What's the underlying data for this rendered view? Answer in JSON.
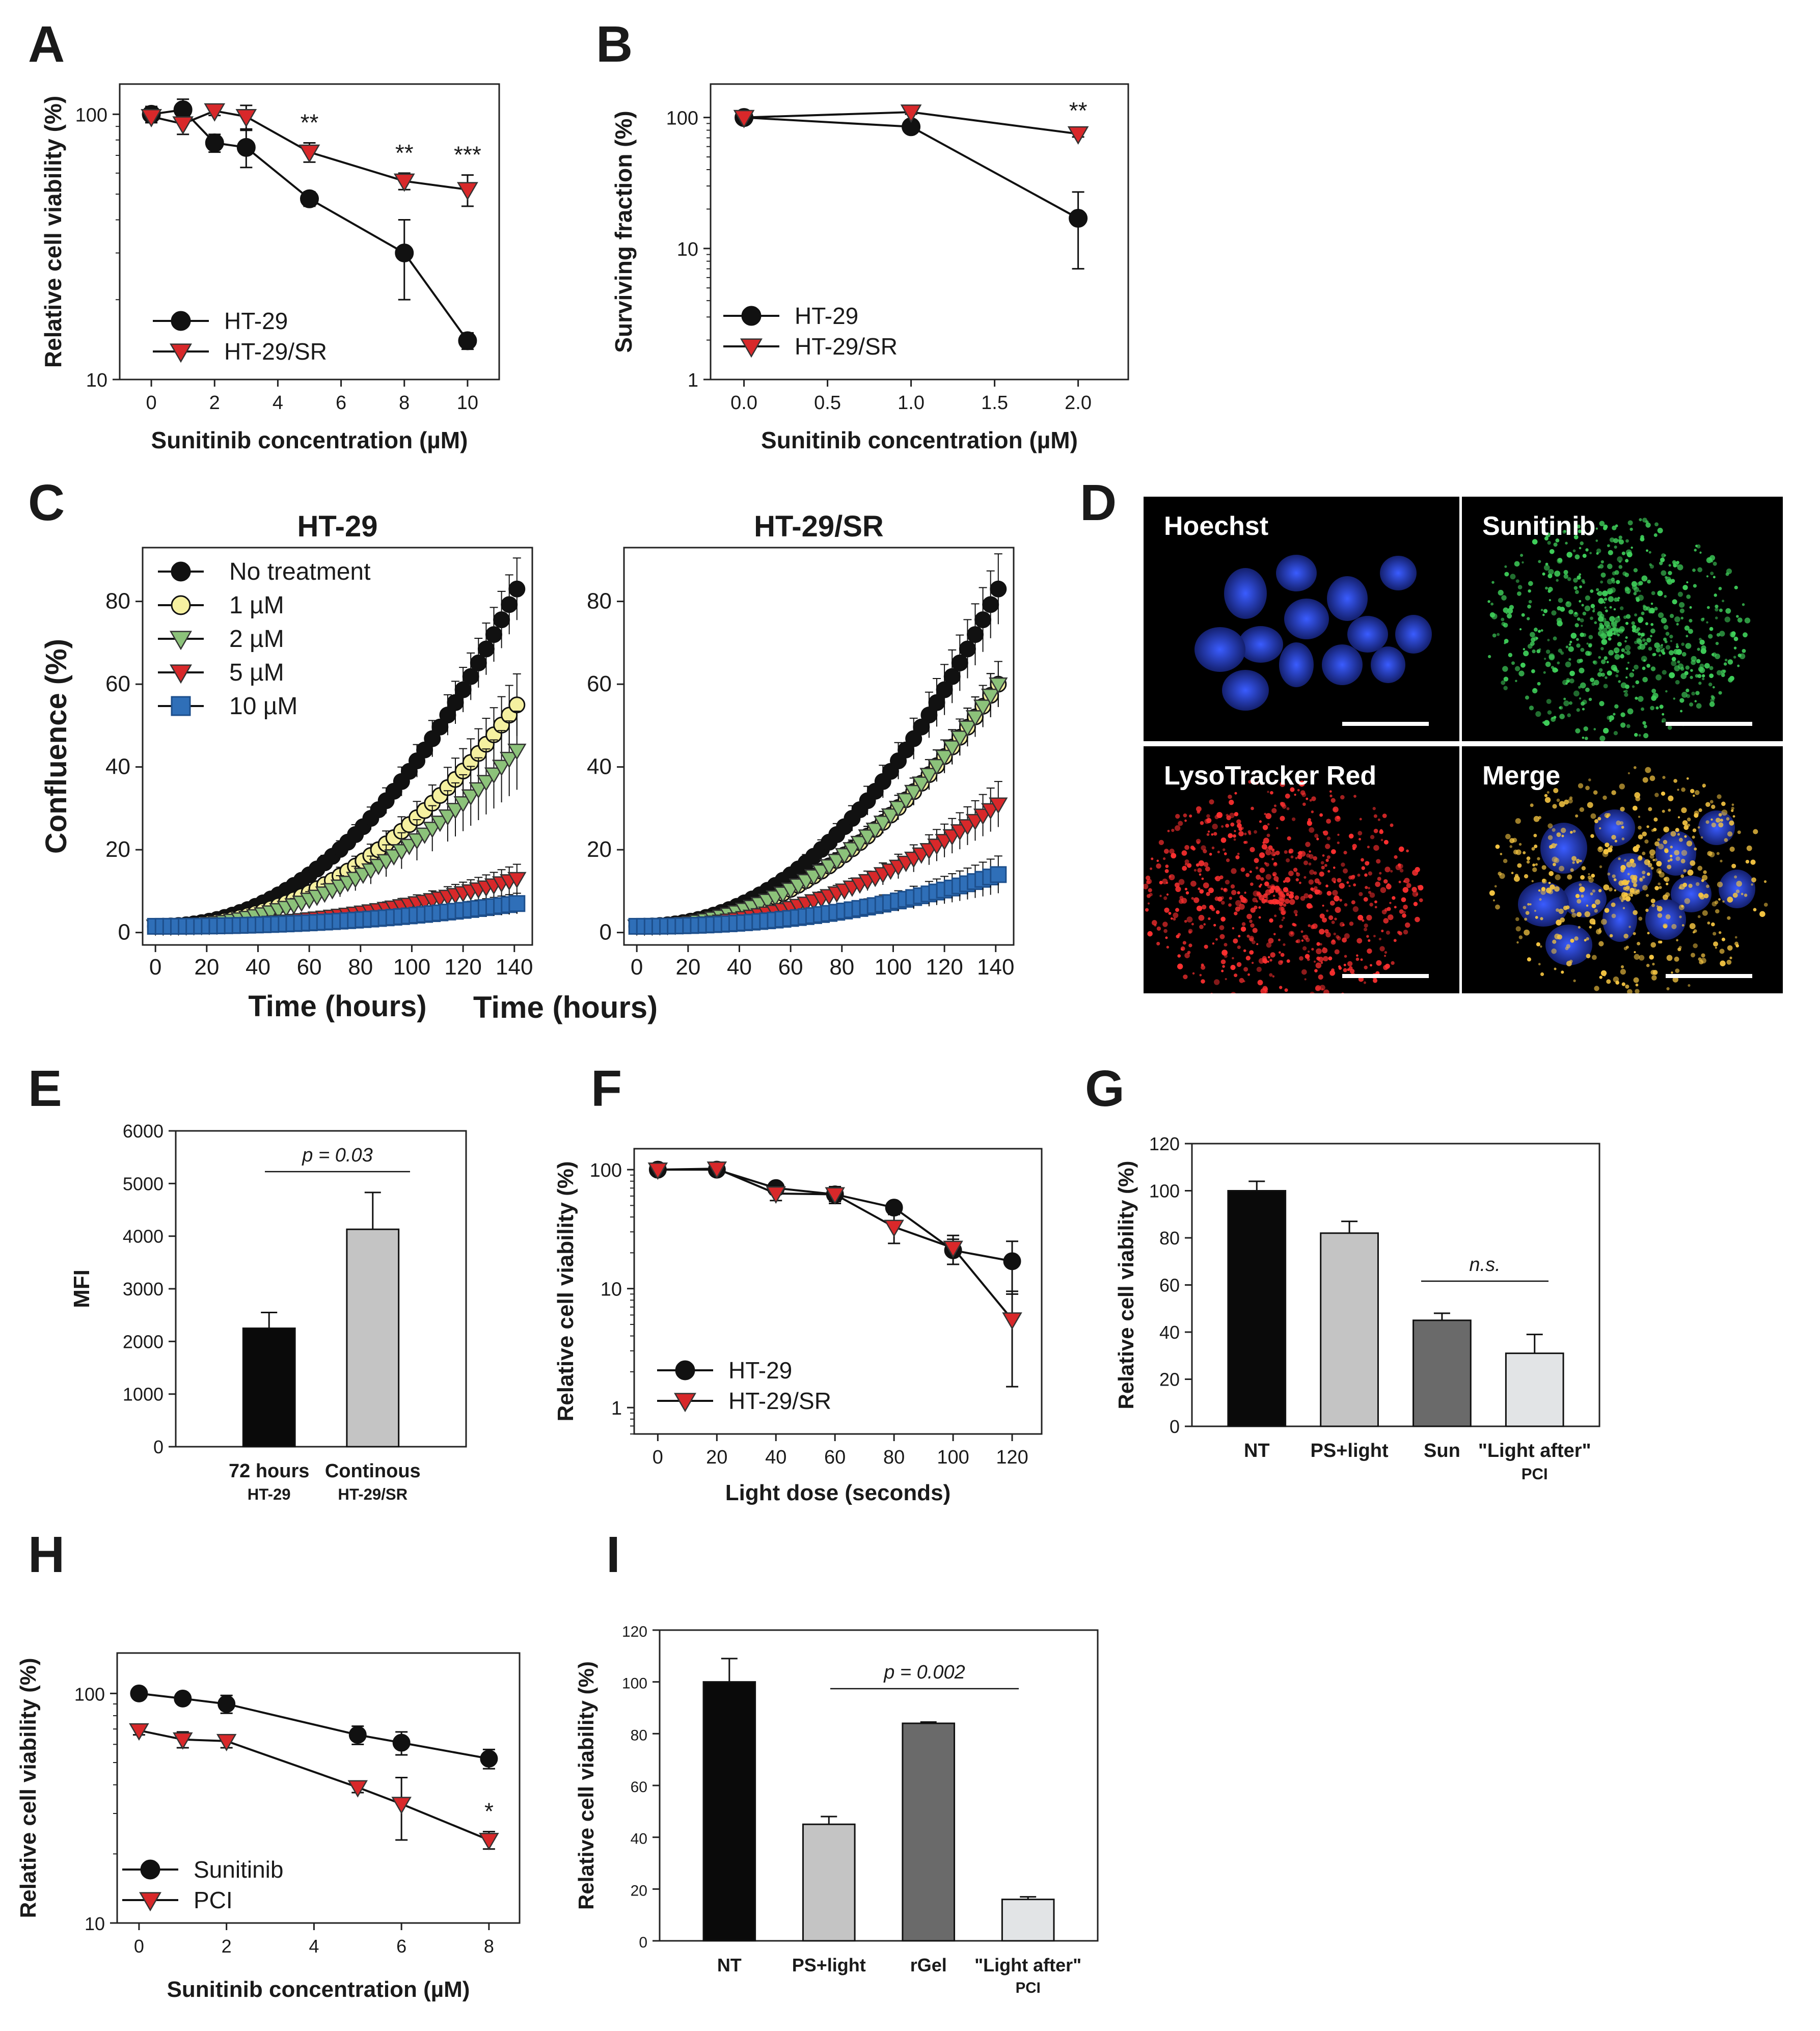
{
  "panels": {
    "A": "A",
    "B": "B",
    "C": "C",
    "D": "D",
    "E": "E",
    "F": "F",
    "G": "G",
    "H": "H",
    "I": "I"
  },
  "micrographs": {
    "hoechst": "Hoechst",
    "sunitinib": "Sunitinib",
    "lysotracker": "LysoTracker Red",
    "merge": "Merge"
  },
  "colors": {
    "black_series": "#111111",
    "red_series": "#d8282a",
    "yellow": "#f5f0a0",
    "green": "#8cc27a",
    "blue": "#2f6fb8",
    "bar_black": "#0a0a0a",
    "bar_light": "#c4c4c4",
    "bar_dark": "#6a6a6a",
    "bar_pale": "#e2e4e6"
  },
  "chart_data": [
    {
      "id": "A",
      "type": "line",
      "yscale": "log",
      "xlabel": "Sunitinib concentration (µM)",
      "ylabel": "Relative cell viability (%)",
      "xlim": [
        -1,
        11
      ],
      "ylim": [
        10,
        130
      ],
      "xticks": [
        "0",
        "2",
        "4",
        "6",
        "8",
        "10"
      ],
      "yticks": [
        "10",
        "100"
      ],
      "series": [
        {
          "name": "HT-29",
          "marker": "circle",
          "x": [
            0,
            1,
            2,
            3,
            5,
            8,
            10
          ],
          "y": [
            100,
            104,
            78,
            75,
            48,
            30,
            14
          ],
          "err": [
            7,
            10,
            6,
            12,
            3,
            10,
            1
          ]
        },
        {
          "name": "HT-29/SR",
          "marker": "triangle",
          "x": [
            0,
            1,
            2,
            3,
            5,
            8,
            10
          ],
          "y": [
            98,
            92,
            103,
            98,
            72,
            56,
            52
          ],
          "err": [
            5,
            8,
            4,
            10,
            6,
            4,
            7
          ]
        }
      ],
      "annotations": [
        {
          "x": 5,
          "text": "**"
        },
        {
          "x": 8,
          "text": "**"
        },
        {
          "x": 10,
          "text": "***"
        }
      ],
      "legend": [
        "HT-29",
        "HT-29/SR"
      ]
    },
    {
      "id": "B",
      "type": "line",
      "yscale": "log",
      "xlabel": "Sunitinib concentration (µM)",
      "ylabel": "Surviving fraction (%)",
      "xlim": [
        -0.2,
        2.3
      ],
      "ylim": [
        1,
        180
      ],
      "xticks": [
        "0.0",
        "0.5",
        "1.0",
        "1.5",
        "2.0"
      ],
      "yticks": [
        "1",
        "10",
        "100"
      ],
      "series": [
        {
          "name": "HT-29",
          "marker": "circle",
          "x": [
            0,
            1,
            2
          ],
          "y": [
            100,
            85,
            17
          ],
          "err": [
            5,
            5,
            10
          ]
        },
        {
          "name": "HT-29/SR",
          "marker": "triangle",
          "x": [
            0,
            1,
            2
          ],
          "y": [
            100,
            110,
            75
          ],
          "err": [
            4,
            4,
            4
          ]
        }
      ],
      "annotations": [
        {
          "x": 2,
          "text": "**"
        }
      ],
      "legend": [
        "HT-29",
        "HT-29/SR"
      ]
    },
    {
      "id": "C1",
      "type": "line",
      "title": "HT-29",
      "xlabel": "Time (hours)",
      "ylabel": "Confluence (%)",
      "xlim": [
        -5,
        147
      ],
      "ylim": [
        -3,
        93
      ],
      "xticks": [
        "0",
        "20",
        "40",
        "60",
        "80",
        "100",
        "120",
        "140"
      ],
      "yticks": [
        "0",
        "20",
        "40",
        "60",
        "80"
      ],
      "series": [
        {
          "name": "No treatment",
          "marker": "circle",
          "end": 83,
          "err": 7
        },
        {
          "name": "1 µM",
          "marker": "circle",
          "end": 55,
          "err": 7
        },
        {
          "name": "2 µM",
          "marker": "triangle",
          "end": 44,
          "err": 9
        },
        {
          "name": "5 µM",
          "marker": "triangle",
          "end": 13,
          "err": 3
        },
        {
          "name": "10 µM",
          "marker": "square",
          "end": 7,
          "err": 2
        }
      ],
      "legend": [
        "No treatment",
        "1 µM",
        "2 µM",
        "5 µM",
        "10 µM"
      ]
    },
    {
      "id": "C2",
      "type": "line",
      "title": "HT-29/SR",
      "xlim": [
        -5,
        147
      ],
      "ylim": [
        -3,
        93
      ],
      "xticks": [
        "0",
        "20",
        "40",
        "60",
        "80",
        "100",
        "120",
        "140"
      ],
      "yticks": [
        "0",
        "20",
        "40",
        "60",
        "80"
      ],
      "series": [
        {
          "name": "No treatment",
          "marker": "circle",
          "end": 83,
          "err": 8
        },
        {
          "name": "1 µM",
          "marker": "circle",
          "end": 60,
          "err": 5
        },
        {
          "name": "2 µM",
          "marker": "triangle",
          "end": 60,
          "err": 5
        },
        {
          "name": "5 µM",
          "marker": "triangle",
          "end": 31,
          "err": 5
        },
        {
          "name": "10 µM",
          "marker": "square",
          "end": 14,
          "err": 4
        }
      ]
    },
    {
      "id": "E",
      "type": "bar",
      "ylabel": "MFI",
      "ylim": [
        0,
        6000
      ],
      "yticks": [
        "0",
        "1000",
        "2000",
        "3000",
        "4000",
        "5000",
        "6000"
      ],
      "categories": [
        [
          "72 hours",
          "HT-29"
        ],
        [
          "Continous",
          "HT-29/SR"
        ]
      ],
      "values": [
        2250,
        4130
      ],
      "err": [
        300,
        700
      ],
      "annotation": "p = 0.03"
    },
    {
      "id": "F",
      "type": "line",
      "yscale": "log",
      "xlabel": "Light dose (seconds)",
      "ylabel": "Relative cell viability (%)",
      "xlim": [
        -8,
        130
      ],
      "ylim": [
        0.6,
        150
      ],
      "xticks": [
        "0",
        "20",
        "40",
        "60",
        "80",
        "100",
        "120"
      ],
      "yticks": [
        "1",
        "10",
        "100"
      ],
      "series": [
        {
          "name": "HT-29",
          "marker": "circle",
          "x": [
            0,
            20,
            40,
            60,
            80,
            100,
            120
          ],
          "y": [
            100,
            100,
            70,
            62,
            48,
            21,
            17
          ],
          "err": [
            4,
            5,
            8,
            8,
            5,
            5,
            8
          ]
        },
        {
          "name": "HT-29/SR",
          "marker": "triangle",
          "x": [
            0,
            20,
            40,
            60,
            80,
            100,
            120
          ],
          "y": [
            100,
            102,
            63,
            62,
            33,
            22,
            5.5
          ],
          "err": [
            4,
            5,
            8,
            10,
            9,
            6,
            4
          ]
        }
      ],
      "legend": [
        "HT-29",
        "HT-29/SR"
      ]
    },
    {
      "id": "G",
      "type": "bar",
      "ylabel": "Relative cell viability (%)",
      "ylim": [
        0,
        120
      ],
      "yticks": [
        "0",
        "20",
        "40",
        "60",
        "80",
        "100",
        "120"
      ],
      "categories": [
        [
          "NT"
        ],
        [
          "PS+light"
        ],
        [
          "Sun"
        ],
        [
          "\"Light after\"",
          "PCI"
        ]
      ],
      "values": [
        100,
        82,
        45,
        31
      ],
      "err": [
        4,
        5,
        3,
        8
      ],
      "annotation": "n.s."
    },
    {
      "id": "H",
      "type": "line",
      "yscale": "log",
      "xlabel": "Sunitinib concentration (µM)",
      "ylabel": "Relative cell viability (%)",
      "xlim": [
        -0.5,
        8.7
      ],
      "ylim": [
        10,
        150
      ],
      "xticks": [
        "0",
        "2",
        "4",
        "6",
        "8"
      ],
      "yticks": [
        "10",
        "100"
      ],
      "series": [
        {
          "name": "Sunitinib",
          "marker": "circle",
          "x": [
            0,
            1,
            2,
            5,
            6,
            8
          ],
          "y": [
            100,
            95,
            90,
            66,
            61,
            52
          ],
          "err": [
            3,
            4,
            8,
            6,
            7,
            5
          ]
        },
        {
          "name": "PCI",
          "marker": "triangle",
          "x": [
            0,
            1,
            2,
            5,
            6,
            8
          ],
          "y": [
            69,
            63,
            62,
            39,
            33,
            23
          ],
          "err": [
            3,
            5,
            4,
            2,
            10,
            2
          ]
        }
      ],
      "annotations": [
        {
          "x": 8,
          "text": "*"
        }
      ],
      "legend": [
        "Sunitinib",
        "PCI"
      ]
    },
    {
      "id": "I",
      "type": "bar",
      "ylabel": "Relative cell viability (%)",
      "ylim": [
        0,
        120
      ],
      "yticks": [
        "0",
        "20",
        "40",
        "60",
        "80",
        "100",
        "120"
      ],
      "categories": [
        [
          "NT"
        ],
        [
          "PS+light"
        ],
        [
          "rGel"
        ],
        [
          "\"Light after\"",
          "PCI"
        ]
      ],
      "values": [
        100,
        45,
        84,
        16
      ],
      "err": [
        9,
        3,
        0.5,
        1
      ],
      "annotation": "p = 0.002"
    }
  ]
}
